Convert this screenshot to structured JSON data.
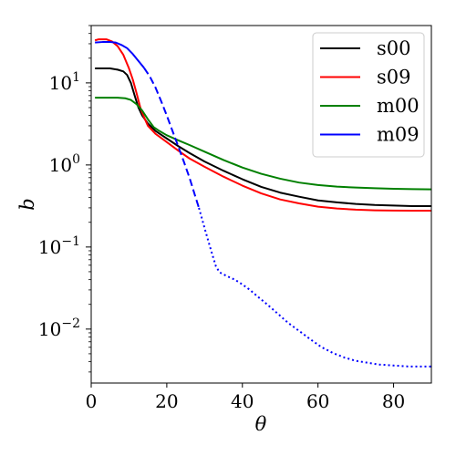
{
  "chart_data": {
    "type": "line",
    "xlabel": "θ",
    "ylabel": "b",
    "xlim": [
      0,
      90
    ],
    "ylim": [
      0.0022,
      50
    ],
    "yscale": "log",
    "grid": false,
    "legend_placement": "top-right",
    "x_ticks": [
      {
        "value": 0,
        "label": "0"
      },
      {
        "value": 20,
        "label": "20"
      },
      {
        "value": 40,
        "label": "40"
      },
      {
        "value": 60,
        "label": "60"
      },
      {
        "value": 80,
        "label": "80"
      }
    ],
    "y_ticks": [
      {
        "value": 0.01,
        "base": "10",
        "exp": "−2"
      },
      {
        "value": 0.1,
        "base": "10",
        "exp": "−1"
      },
      {
        "value": 1,
        "base": "10",
        "exp": "0"
      },
      {
        "value": 10,
        "base": "10",
        "exp": "1"
      }
    ],
    "series": [
      {
        "name": "s00",
        "color": "#000000",
        "segments": [
          {
            "style": "solid",
            "points": [
              [
                1,
                15
              ],
              [
                3,
                15
              ],
              [
                5,
                15
              ],
              [
                7,
                14.5
              ],
              [
                8.5,
                13.8
              ],
              [
                9.5,
                12.5
              ],
              [
                10.5,
                10
              ],
              [
                11.5,
                7
              ],
              [
                12.5,
                5
              ],
              [
                13.5,
                4
              ],
              [
                15,
                3.2
              ],
              [
                17,
                2.6
              ],
              [
                20,
                2.1
              ],
              [
                23,
                1.7
              ],
              [
                26,
                1.4
              ],
              [
                30,
                1.1
              ],
              [
                35,
                0.85
              ],
              [
                40,
                0.67
              ],
              [
                45,
                0.54
              ],
              [
                50,
                0.46
              ],
              [
                55,
                0.41
              ],
              [
                60,
                0.37
              ],
              [
                65,
                0.35
              ],
              [
                70,
                0.335
              ],
              [
                75,
                0.325
              ],
              [
                80,
                0.32
              ],
              [
                85,
                0.315
              ],
              [
                90,
                0.315
              ]
            ]
          }
        ]
      },
      {
        "name": "s09",
        "color": "#ff0000",
        "segments": [
          {
            "style": "solid",
            "points": [
              [
                1,
                33
              ],
              [
                2,
                34
              ],
              [
                4,
                34
              ],
              [
                5.5,
                32
              ],
              [
                7,
                28
              ],
              [
                8.5,
                22
              ],
              [
                10,
                15
              ],
              [
                11,
                11
              ],
              [
                12,
                7.5
              ],
              [
                13,
                5
              ],
              [
                14,
                3.8
              ],
              [
                15,
                3
              ],
              [
                17,
                2.4
              ],
              [
                20,
                1.9
              ],
              [
                23,
                1.5
              ],
              [
                26,
                1.2
              ],
              [
                30,
                0.95
              ],
              [
                35,
                0.72
              ],
              [
                40,
                0.56
              ],
              [
                45,
                0.45
              ],
              [
                50,
                0.38
              ],
              [
                55,
                0.34
              ],
              [
                60,
                0.31
              ],
              [
                65,
                0.295
              ],
              [
                70,
                0.285
              ],
              [
                75,
                0.28
              ],
              [
                80,
                0.278
              ],
              [
                85,
                0.277
              ],
              [
                90,
                0.277
              ]
            ]
          }
        ]
      },
      {
        "name": "m00",
        "color": "#008000",
        "segments": [
          {
            "style": "solid",
            "points": [
              [
                1,
                6.6
              ],
              [
                4,
                6.6
              ],
              [
                7,
                6.6
              ],
              [
                9,
                6.5
              ],
              [
                10.5,
                6.2
              ],
              [
                12,
                5.5
              ],
              [
                13.5,
                4.6
              ],
              [
                15,
                3.6
              ],
              [
                16.5,
                2.9
              ],
              [
                18,
                2.6
              ],
              [
                20,
                2.3
              ],
              [
                23,
                2.0
              ],
              [
                26,
                1.75
              ],
              [
                30,
                1.45
              ],
              [
                35,
                1.15
              ],
              [
                40,
                0.93
              ],
              [
                45,
                0.78
              ],
              [
                50,
                0.68
              ],
              [
                55,
                0.61
              ],
              [
                60,
                0.57
              ],
              [
                65,
                0.545
              ],
              [
                70,
                0.53
              ],
              [
                75,
                0.52
              ],
              [
                80,
                0.512
              ],
              [
                85,
                0.508
              ],
              [
                90,
                0.505
              ]
            ]
          }
        ]
      },
      {
        "name": "m09",
        "color": "#0000ff",
        "segments": [
          {
            "style": "solid",
            "points": [
              [
                1,
                31
              ],
              [
                3,
                31.5
              ],
              [
                5,
                31.5
              ],
              [
                6.5,
                31
              ],
              [
                8,
                29
              ],
              [
                9.5,
                26.5
              ],
              [
                11,
                22.5
              ],
              [
                12.5,
                18.5
              ],
              [
                14,
                15.2
              ]
            ]
          },
          {
            "style": "dashed",
            "points": [
              [
                14,
                15.2
              ],
              [
                15.5,
                12
              ],
              [
                17,
                8.8
              ],
              [
                18.5,
                6
              ],
              [
                20,
                4
              ],
              [
                21.5,
                2.6
              ],
              [
                23,
                1.7
              ],
              [
                24.5,
                1.1
              ],
              [
                26,
                0.7
              ],
              [
                27.5,
                0.42
              ],
              [
                28.5,
                0.3
              ]
            ]
          },
          {
            "style": "dotted",
            "points": [
              [
                28.5,
                0.3
              ],
              [
                30,
                0.17
              ],
              [
                31.5,
                0.098
              ],
              [
                33,
                0.058
              ],
              [
                34,
                0.049
              ],
              [
                36,
                0.044
              ],
              [
                38,
                0.04
              ],
              [
                40,
                0.035
              ],
              [
                42,
                0.03
              ],
              [
                44,
                0.025
              ],
              [
                46,
                0.021
              ],
              [
                48,
                0.0175
              ],
              [
                50,
                0.0145
              ],
              [
                52,
                0.012
              ],
              [
                55,
                0.0095
              ],
              [
                58,
                0.0075
              ],
              [
                61,
                0.006
              ],
              [
                64,
                0.0051
              ],
              [
                67,
                0.0045
              ],
              [
                70,
                0.0041
              ],
              [
                73,
                0.0039
              ],
              [
                76,
                0.0037
              ],
              [
                80,
                0.0036
              ],
              [
                84,
                0.0035
              ],
              [
                88,
                0.0035
              ],
              [
                90,
                0.0035
              ]
            ]
          }
        ]
      }
    ]
  }
}
